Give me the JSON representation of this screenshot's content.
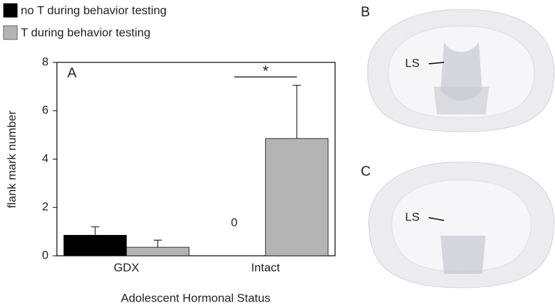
{
  "chart_data": {
    "type": "bar",
    "panel_label": "A",
    "x_label": "Adolescent Hormonal Status",
    "y_label": "flank mark number",
    "categories": [
      "GDX",
      "Intact"
    ],
    "series": [
      {
        "name": "no T during behavior testing",
        "color": "#000000",
        "values": [
          0.85,
          0
        ],
        "errors": [
          0.35,
          null
        ]
      },
      {
        "name": "T during behavior testing",
        "color": "#b4b4b4",
        "values": [
          0.35,
          4.85
        ],
        "errors": [
          0.3,
          2.2
        ]
      }
    ],
    "ylim": [
      0,
      8
    ],
    "yticks": [
      0,
      2,
      4,
      6,
      8
    ],
    "annotation": "*"
  },
  "images": [
    {
      "panel_label": "B",
      "region_label": "LS"
    },
    {
      "panel_label": "C",
      "region_label": "LS"
    }
  ]
}
